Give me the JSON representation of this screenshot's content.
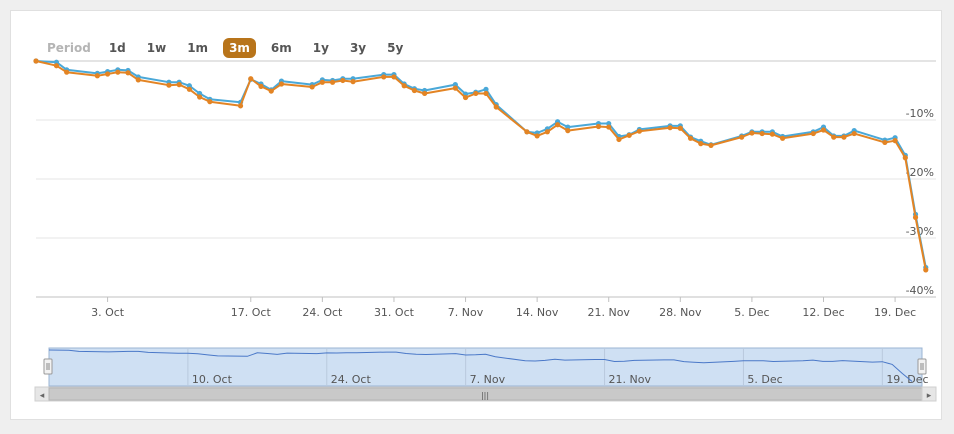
{
  "period": {
    "label": "Period",
    "buttons": [
      {
        "id": "1d",
        "label": "1d"
      },
      {
        "id": "1w",
        "label": "1w"
      },
      {
        "id": "1m",
        "label": "1m"
      },
      {
        "id": "3m",
        "label": "3m"
      },
      {
        "id": "6m",
        "label": "6m"
      },
      {
        "id": "1y",
        "label": "1y"
      },
      {
        "id": "3y",
        "label": "3y"
      },
      {
        "id": "5y",
        "label": "5y"
      }
    ],
    "active": "3m"
  },
  "colors": {
    "series_primary": "#4aa8d8",
    "series_secondary": "#e38424",
    "navigator_fill": "#cfe0f3",
    "navigator_line": "#4a78c8",
    "active_button": "#b8741a"
  },
  "chart_data": {
    "type": "line",
    "x_start": "2017-09-26",
    "x_end": "2017-12-23",
    "xlim": [
      "2017-09-26",
      "2017-12-23"
    ],
    "ylim": [
      -40,
      0
    ],
    "yticks": [
      {
        "value": -10,
        "label": "-10%"
      },
      {
        "value": -20,
        "label": "-20%"
      },
      {
        "value": -30,
        "label": "-30%"
      },
      {
        "value": -40,
        "label": "-40%"
      }
    ],
    "xticks": [
      {
        "date": "2017-10-03",
        "label": "3. Oct"
      },
      {
        "date": "2017-10-17",
        "label": "17. Oct"
      },
      {
        "date": "2017-10-24",
        "label": "24. Oct"
      },
      {
        "date": "2017-10-31",
        "label": "31. Oct"
      },
      {
        "date": "2017-11-07",
        "label": "7. Nov"
      },
      {
        "date": "2017-11-14",
        "label": "14. Nov"
      },
      {
        "date": "2017-11-21",
        "label": "21. Nov"
      },
      {
        "date": "2017-11-28",
        "label": "28. Nov"
      },
      {
        "date": "2017-12-05",
        "label": "5. Dec"
      },
      {
        "date": "2017-12-12",
        "label": "12. Dec"
      },
      {
        "date": "2017-12-19",
        "label": "19. Dec"
      }
    ],
    "grid": true,
    "series": [
      {
        "color": "#4aa8d8",
        "points": [
          [
            "2017-09-26",
            0.0
          ],
          [
            "2017-09-28",
            -0.2
          ],
          [
            "2017-09-29",
            -1.5
          ],
          [
            "2017-10-02",
            -2.1
          ],
          [
            "2017-10-03",
            -1.8
          ],
          [
            "2017-10-04",
            -1.5
          ],
          [
            "2017-10-05",
            -1.6
          ],
          [
            "2017-10-06",
            -2.7
          ],
          [
            "2017-10-09",
            -3.6
          ],
          [
            "2017-10-10",
            -3.6
          ],
          [
            "2017-10-11",
            -4.2
          ],
          [
            "2017-10-12",
            -5.5
          ],
          [
            "2017-10-13",
            -6.5
          ],
          [
            "2017-10-16",
            -7.0
          ],
          [
            "2017-10-17",
            -3.1
          ],
          [
            "2017-10-18",
            -3.9
          ],
          [
            "2017-10-19",
            -4.9
          ],
          [
            "2017-10-20",
            -3.4
          ],
          [
            "2017-10-23",
            -4.0
          ],
          [
            "2017-10-24",
            -3.2
          ],
          [
            "2017-10-25",
            -3.3
          ],
          [
            "2017-10-26",
            -3.0
          ],
          [
            "2017-10-27",
            -3.0
          ],
          [
            "2017-10-30",
            -2.3
          ],
          [
            "2017-10-31",
            -2.3
          ],
          [
            "2017-11-01",
            -3.9
          ],
          [
            "2017-11-02",
            -4.7
          ],
          [
            "2017-11-03",
            -5.0
          ],
          [
            "2017-11-06",
            -4.0
          ],
          [
            "2017-11-07",
            -5.6
          ],
          [
            "2017-11-08",
            -5.3
          ],
          [
            "2017-11-09",
            -4.8
          ],
          [
            "2017-11-10",
            -7.4
          ],
          [
            "2017-11-13",
            -12.0
          ],
          [
            "2017-11-14",
            -12.2
          ],
          [
            "2017-11-15",
            -11.5
          ],
          [
            "2017-11-16",
            -10.3
          ],
          [
            "2017-11-17",
            -11.2
          ],
          [
            "2017-11-20",
            -10.6
          ],
          [
            "2017-11-21",
            -10.6
          ],
          [
            "2017-11-22",
            -12.8
          ],
          [
            "2017-11-23",
            -12.5
          ],
          [
            "2017-11-24",
            -11.6
          ],
          [
            "2017-11-27",
            -11.0
          ],
          [
            "2017-11-28",
            -11.0
          ],
          [
            "2017-11-29",
            -12.9
          ],
          [
            "2017-11-30",
            -13.6
          ],
          [
            "2017-12-01",
            -14.2
          ],
          [
            "2017-12-04",
            -12.7
          ],
          [
            "2017-12-05",
            -12.0
          ],
          [
            "2017-12-06",
            -12.0
          ],
          [
            "2017-12-07",
            -12.0
          ],
          [
            "2017-12-08",
            -12.8
          ],
          [
            "2017-12-11",
            -12.0
          ],
          [
            "2017-12-12",
            -11.2
          ],
          [
            "2017-12-13",
            -12.7
          ],
          [
            "2017-12-14",
            -12.7
          ],
          [
            "2017-12-15",
            -11.8
          ],
          [
            "2017-12-18",
            -13.4
          ],
          [
            "2017-12-19",
            -13.0
          ],
          [
            "2017-12-20",
            -16.0
          ],
          [
            "2017-12-21",
            -26.0
          ],
          [
            "2017-12-22",
            -35.0
          ]
        ]
      },
      {
        "color": "#e38424",
        "points": [
          [
            "2017-09-26",
            0.0
          ],
          [
            "2017-09-28",
            -0.8
          ],
          [
            "2017-09-29",
            -1.9
          ],
          [
            "2017-10-02",
            -2.5
          ],
          [
            "2017-10-03",
            -2.2
          ],
          [
            "2017-10-04",
            -1.9
          ],
          [
            "2017-10-05",
            -2.0
          ],
          [
            "2017-10-06",
            -3.2
          ],
          [
            "2017-10-09",
            -4.1
          ],
          [
            "2017-10-10",
            -4.0
          ],
          [
            "2017-10-11",
            -4.8
          ],
          [
            "2017-10-12",
            -6.1
          ],
          [
            "2017-10-13",
            -6.9
          ],
          [
            "2017-10-16",
            -7.6
          ],
          [
            "2017-10-17",
            -3.0
          ],
          [
            "2017-10-18",
            -4.3
          ],
          [
            "2017-10-19",
            -5.1
          ],
          [
            "2017-10-20",
            -3.9
          ],
          [
            "2017-10-23",
            -4.4
          ],
          [
            "2017-10-24",
            -3.6
          ],
          [
            "2017-10-25",
            -3.6
          ],
          [
            "2017-10-26",
            -3.3
          ],
          [
            "2017-10-27",
            -3.5
          ],
          [
            "2017-10-30",
            -2.7
          ],
          [
            "2017-10-31",
            -2.7
          ],
          [
            "2017-11-01",
            -4.2
          ],
          [
            "2017-11-02",
            -5.0
          ],
          [
            "2017-11-03",
            -5.5
          ],
          [
            "2017-11-06",
            -4.6
          ],
          [
            "2017-11-07",
            -6.2
          ],
          [
            "2017-11-08",
            -5.5
          ],
          [
            "2017-11-09",
            -5.5
          ],
          [
            "2017-11-10",
            -7.8
          ],
          [
            "2017-11-13",
            -12.0
          ],
          [
            "2017-11-14",
            -12.7
          ],
          [
            "2017-11-15",
            -12.0
          ],
          [
            "2017-11-16",
            -10.8
          ],
          [
            "2017-11-17",
            -11.8
          ],
          [
            "2017-11-20",
            -11.1
          ],
          [
            "2017-11-21",
            -11.2
          ],
          [
            "2017-11-22",
            -13.3
          ],
          [
            "2017-11-23",
            -12.6
          ],
          [
            "2017-11-24",
            -11.9
          ],
          [
            "2017-11-27",
            -11.3
          ],
          [
            "2017-11-28",
            -11.4
          ],
          [
            "2017-11-29",
            -13.1
          ],
          [
            "2017-11-30",
            -14.0
          ],
          [
            "2017-12-01",
            -14.3
          ],
          [
            "2017-12-04",
            -12.9
          ],
          [
            "2017-12-05",
            -12.2
          ],
          [
            "2017-12-06",
            -12.3
          ],
          [
            "2017-12-07",
            -12.4
          ],
          [
            "2017-12-08",
            -13.1
          ],
          [
            "2017-12-11",
            -12.3
          ],
          [
            "2017-12-12",
            -11.7
          ],
          [
            "2017-12-13",
            -12.9
          ],
          [
            "2017-12-14",
            -12.9
          ],
          [
            "2017-12-15",
            -12.3
          ],
          [
            "2017-12-18",
            -13.8
          ],
          [
            "2017-12-19",
            -13.5
          ],
          [
            "2017-12-20",
            -16.4
          ],
          [
            "2017-12-21",
            -26.5
          ],
          [
            "2017-12-22",
            -35.4
          ]
        ]
      }
    ]
  },
  "navigator": {
    "ticks": [
      {
        "date": "2017-10-10",
        "label": "10. Oct"
      },
      {
        "date": "2017-10-24",
        "label": "24. Oct"
      },
      {
        "date": "2017-11-07",
        "label": "7. Nov"
      },
      {
        "date": "2017-11-21",
        "label": "21. Nov"
      },
      {
        "date": "2017-12-05",
        "label": "5. Dec"
      },
      {
        "date": "2017-12-19",
        "label": "19. Dec"
      }
    ],
    "scroll_left_glyph": "◂",
    "scroll_right_glyph": "▸",
    "scroll_grip_glyph": "|||"
  }
}
